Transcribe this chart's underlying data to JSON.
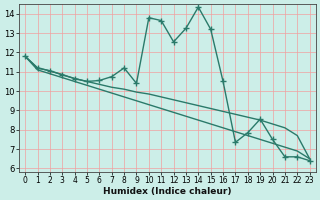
{
  "xlabel": "Humidex (Indice chaleur)",
  "bg_color": "#cceee8",
  "grid_color": "#f0a0a0",
  "line_color": "#2a7a6a",
  "xlim": [
    -0.5,
    23.5
  ],
  "ylim": [
    5.8,
    14.5
  ],
  "xticks": [
    0,
    1,
    2,
    3,
    4,
    5,
    6,
    7,
    8,
    9,
    10,
    11,
    12,
    13,
    14,
    15,
    16,
    17,
    18,
    19,
    20,
    21,
    22,
    23
  ],
  "yticks": [
    6,
    7,
    8,
    9,
    10,
    11,
    12,
    13,
    14
  ],
  "series": [
    {
      "x": [
        0,
        1,
        2,
        3,
        4,
        5,
        6,
        7,
        8,
        9,
        10,
        11,
        12,
        13,
        14,
        15,
        16,
        17,
        18,
        19,
        20,
        21,
        22,
        23
      ],
      "y": [
        11.8,
        11.2,
        11.05,
        10.85,
        10.65,
        10.5,
        10.35,
        10.2,
        10.1,
        9.95,
        9.85,
        9.7,
        9.55,
        9.4,
        9.25,
        9.1,
        8.95,
        8.8,
        8.65,
        8.5,
        8.3,
        8.1,
        7.7,
        6.5
      ],
      "marker": null,
      "linewidth": 1.0
    },
    {
      "x": [
        0,
        1,
        2,
        3,
        4,
        5,
        6,
        7,
        8,
        9,
        10,
        11,
        12,
        13,
        14,
        15,
        16,
        17,
        18,
        19,
        20,
        21,
        22,
        23
      ],
      "y": [
        11.8,
        11.1,
        10.9,
        10.7,
        10.5,
        10.3,
        10.1,
        9.9,
        9.7,
        9.5,
        9.3,
        9.1,
        8.9,
        8.7,
        8.5,
        8.3,
        8.1,
        7.9,
        7.7,
        7.5,
        7.3,
        7.1,
        6.9,
        6.5
      ],
      "marker": null,
      "linewidth": 1.0
    },
    {
      "x": [
        0,
        1,
        2,
        3,
        4,
        5,
        6,
        7,
        8,
        9,
        10,
        11,
        12,
        13,
        14,
        15,
        16,
        17,
        18,
        19,
        20,
        21,
        22,
        23
      ],
      "y": [
        11.8,
        11.2,
        11.05,
        10.85,
        10.65,
        10.5,
        10.55,
        10.75,
        11.2,
        10.4,
        13.8,
        13.65,
        12.55,
        13.25,
        14.35,
        13.2,
        10.5,
        7.35,
        7.85,
        8.55,
        7.5,
        6.6,
        6.6,
        6.4
      ],
      "marker": "+",
      "markersize": 4,
      "linewidth": 1.0
    }
  ]
}
